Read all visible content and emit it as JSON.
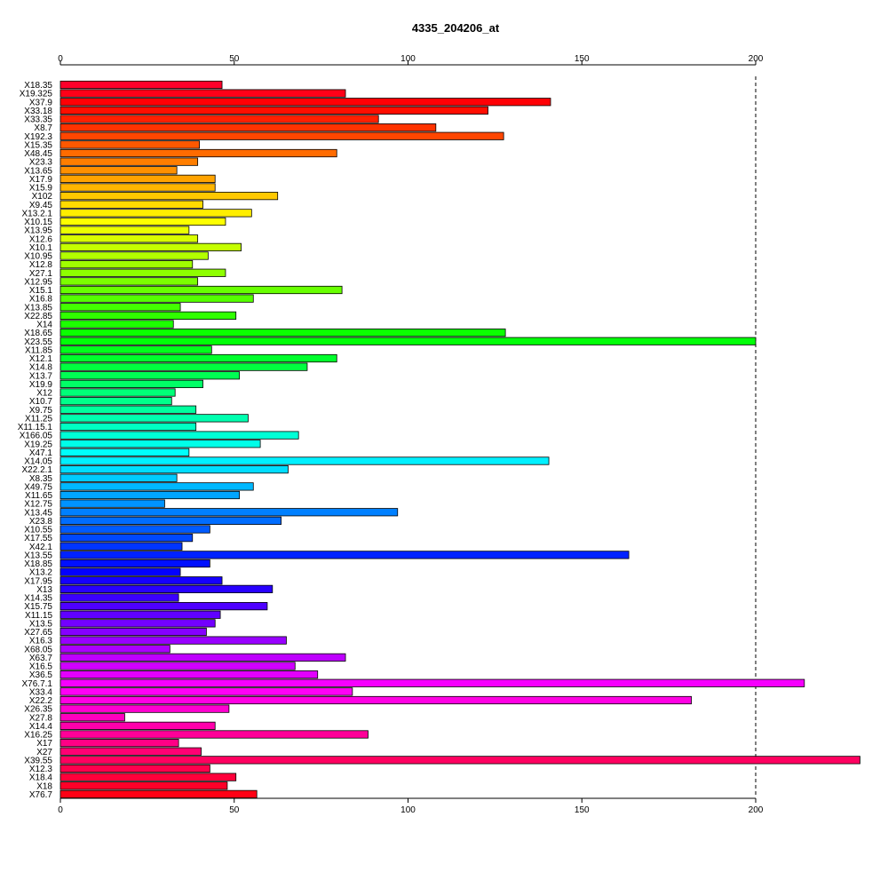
{
  "chart_data": {
    "type": "bar",
    "orientation": "horizontal",
    "title": "4335_204206_at",
    "xlabel": "",
    "ylabel": "",
    "xlim": [
      0,
      230
    ],
    "xticks": [
      0,
      50,
      100,
      150,
      200
    ],
    "xtick_labels": [
      "0",
      "50",
      "100",
      "150",
      "200"
    ],
    "axes": "top and bottom",
    "reference_line": {
      "value": 200,
      "style": "dashed"
    },
    "grid": false,
    "legend": "none",
    "color_scheme": "rainbow",
    "categories": [
      "X18.35",
      "X19.325",
      "X37.9",
      "X33.18",
      "X33.35",
      "X8.7",
      "X192.3",
      "X15.35",
      "X48.45",
      "X23.3",
      "X13.65",
      "X17.9",
      "X15.9",
      "X102",
      "X9.45",
      "X13.2.1",
      "X10.15",
      "X13.95",
      "X12.6",
      "X10.1",
      "X10.95",
      "X12.8",
      "X27.1",
      "X12.95",
      "X15.1",
      "X16.8",
      "X13.85",
      "X22.85",
      "X14",
      "X18.65",
      "X23.55",
      "X11.85",
      "X12.1",
      "X14.8",
      "X13.7",
      "X19.9",
      "X12",
      "X10.7",
      "X9.75",
      "X11.25",
      "X11.15.1",
      "X166.05",
      "X19.25",
      "X47.1",
      "X14.05",
      "X22.2.1",
      "X8.35",
      "X49.75",
      "X11.65",
      "X12.75",
      "X13.45",
      "X23.8",
      "X10.55",
      "X17.55",
      "X42.1",
      "X13.55",
      "X18.85",
      "X13.2",
      "X17.95",
      "X13",
      "X14.35",
      "X15.75",
      "X11.15",
      "X13.5",
      "X27.65",
      "X16.3",
      "X68.05",
      "X63.7",
      "X16.5",
      "X36.5",
      "X76.7.1",
      "X33.4",
      "X22.2",
      "X26.35",
      "X27.8",
      "X14.4",
      "X16.25",
      "X17",
      "X27",
      "X39.55",
      "X12.3",
      "X18.4",
      "X18",
      "X76.7"
    ],
    "values": [
      46.5,
      82,
      141,
      123,
      91.5,
      108,
      127.5,
      40,
      79.5,
      39.5,
      33.5,
      44.5,
      44.5,
      62.5,
      41,
      55,
      47.5,
      37,
      39.5,
      52,
      42.5,
      38,
      47.5,
      39.5,
      81,
      55.5,
      34.5,
      50.5,
      32.5,
      128,
      200,
      43.5,
      79.5,
      71,
      51.5,
      41,
      33,
      32,
      39,
      54,
      39,
      68.5,
      57.5,
      37,
      140.5,
      65.5,
      33.5,
      55.5,
      51.5,
      30,
      97,
      63.5,
      43,
      38,
      35,
      163.5,
      43,
      34.5,
      46.5,
      61,
      34,
      59.5,
      46,
      44.5,
      42,
      65,
      31.5,
      82,
      67.5,
      74,
      214,
      84,
      181.5,
      48.5,
      18.5,
      44.5,
      88.5,
      34,
      40.5,
      230,
      43,
      50.5,
      48,
      56.5
    ]
  }
}
